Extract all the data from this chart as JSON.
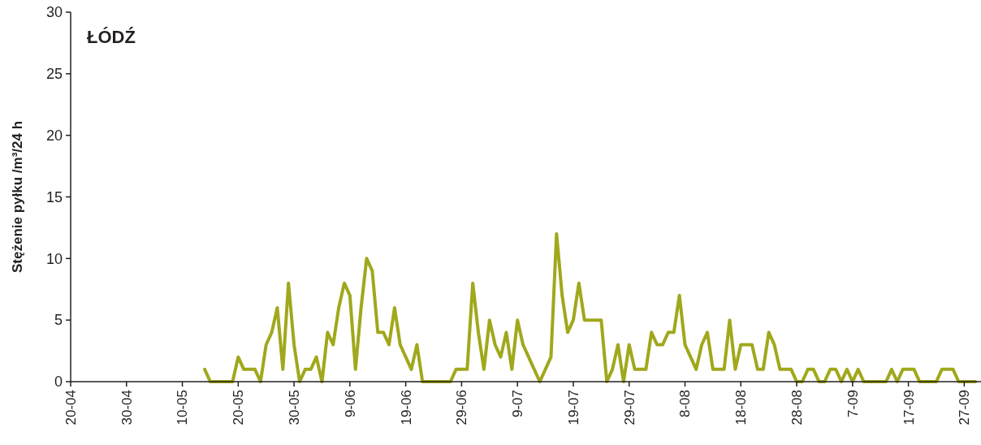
{
  "chart_data": {
    "type": "line",
    "title": "ŁÓDŹ",
    "ylabel": "Stężenie pyłku /m³/24 h",
    "x": [
      "--05-14",
      "--05-15",
      "--05-16",
      "--05-17",
      "--05-18",
      "--05-19",
      "--05-20",
      "--05-21",
      "--05-22",
      "--05-23",
      "--05-24",
      "--05-25",
      "--05-26",
      "--05-27",
      "--05-28",
      "--05-29",
      "--05-30",
      "--05-31",
      "--06-01",
      "--06-02",
      "--06-03",
      "--06-04",
      "--06-05",
      "--06-06",
      "--06-07",
      "--06-08",
      "--06-09",
      "--06-10",
      "--06-11",
      "--06-12",
      "--06-13",
      "--06-14",
      "--06-15",
      "--06-16",
      "--06-17",
      "--06-18",
      "--06-19",
      "--06-20",
      "--06-21",
      "--06-22",
      "--06-23",
      "--06-24",
      "--06-25",
      "--06-26",
      "--06-27",
      "--06-28",
      "--06-29",
      "--06-30",
      "--07-01",
      "--07-02",
      "--07-03",
      "--07-04",
      "--07-05",
      "--07-06",
      "--07-07",
      "--07-08",
      "--07-09",
      "--07-10",
      "--07-11",
      "--07-12",
      "--07-13",
      "--07-14",
      "--07-15",
      "--07-16",
      "--07-17",
      "--07-18",
      "--07-19",
      "--07-20",
      "--07-21",
      "--07-22",
      "--07-23",
      "--07-24",
      "--07-25",
      "--07-26",
      "--07-27",
      "--07-28",
      "--07-29",
      "--07-30",
      "--07-31",
      "--08-01",
      "--08-02",
      "--08-03",
      "--08-04",
      "--08-05",
      "--08-06",
      "--08-07",
      "--08-08",
      "--08-09",
      "--08-10",
      "--08-11",
      "--08-12",
      "--08-13",
      "--08-14",
      "--08-15",
      "--08-16",
      "--08-17",
      "--08-18",
      "--08-19",
      "--08-20",
      "--08-21",
      "--08-22",
      "--08-23",
      "--08-24",
      "--08-25",
      "--08-26",
      "--08-27",
      "--08-28",
      "--08-29",
      "--08-30",
      "--08-31",
      "--09-01",
      "--09-02",
      "--09-03",
      "--09-04",
      "--09-05",
      "--09-06",
      "--09-07",
      "--09-08",
      "--09-09",
      "--09-10",
      "--09-11",
      "--09-12",
      "--09-13",
      "--09-14",
      "--09-15",
      "--09-16",
      "--09-17",
      "--09-18",
      "--09-19",
      "--09-20",
      "--09-21",
      "--09-22",
      "--09-23",
      "--09-24",
      "--09-25",
      "--09-26",
      "--09-27",
      "--09-28",
      "--09-29"
    ],
    "series": [
      {
        "color": "#a0a81c",
        "values": [
          1,
          0,
          0,
          0,
          0,
          0,
          2,
          1,
          1,
          1,
          0,
          3,
          4,
          6,
          1,
          8,
          3,
          0,
          1,
          1,
          2,
          0,
          4,
          3,
          6,
          8,
          7,
          1,
          6,
          10,
          9,
          4,
          4,
          3,
          6,
          3,
          2,
          1,
          3,
          0,
          0,
          0,
          0,
          0,
          0,
          1,
          1,
          1,
          8,
          4,
          1,
          5,
          3,
          2,
          4,
          1,
          5,
          3,
          2,
          1,
          0,
          1,
          2,
          12,
          7,
          4,
          5,
          8,
          5,
          5,
          5,
          5,
          0,
          1,
          3,
          0,
          3,
          1,
          1,
          1,
          4,
          3,
          3,
          4,
          4,
          7,
          3,
          2,
          1,
          3,
          4,
          1,
          1,
          1,
          5,
          1,
          3,
          3,
          3,
          1,
          1,
          4,
          3,
          1,
          1,
          1,
          0,
          0,
          1,
          1,
          0,
          0,
          1,
          1,
          0,
          1,
          0,
          1,
          0,
          0,
          0,
          0,
          0,
          1,
          0,
          1,
          1,
          1,
          0,
          0,
          0,
          0,
          1,
          1,
          1,
          0,
          0,
          0,
          0
        ]
      }
    ],
    "xlim": [
      "--04-20",
      "--09-30"
    ],
    "xticks": [
      {
        "value": "--04-20",
        "label": "20-04"
      },
      {
        "value": "--04-30",
        "label": "30-04"
      },
      {
        "value": "--05-10",
        "label": "10-05"
      },
      {
        "value": "--05-20",
        "label": "20-05"
      },
      {
        "value": "--05-30",
        "label": "30-05"
      },
      {
        "value": "--06-09",
        "label": "9-06"
      },
      {
        "value": "--06-19",
        "label": "19-06"
      },
      {
        "value": "--06-29",
        "label": "29-06"
      },
      {
        "value": "--07-09",
        "label": "9-07"
      },
      {
        "value": "--07-19",
        "label": "19-07"
      },
      {
        "value": "--07-29",
        "label": "29-07"
      },
      {
        "value": "--08-08",
        "label": "8-08"
      },
      {
        "value": "--08-18",
        "label": "18-08"
      },
      {
        "value": "--08-28",
        "label": "28-08"
      },
      {
        "value": "--09-07",
        "label": "7-09"
      },
      {
        "value": "--09-17",
        "label": "17-09"
      },
      {
        "value": "--09-27",
        "label": "27-09"
      }
    ],
    "ylim": [
      0,
      30
    ],
    "yticks": [
      0,
      5,
      10,
      15,
      20,
      25,
      30
    ],
    "line_style": "solid",
    "marker": "none"
  }
}
